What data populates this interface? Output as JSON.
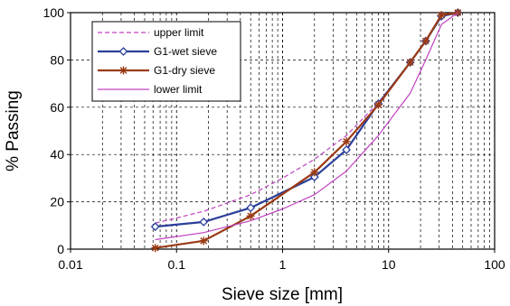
{
  "chart_data": {
    "type": "line",
    "title": "",
    "xlabel": "Sieve size [mm]",
    "ylabel": "% Passing",
    "x_scale": "log",
    "xlim": [
      0.01,
      100
    ],
    "ylim": [
      0,
      100
    ],
    "x_ticks": [
      0.01,
      0.1,
      1,
      10,
      100
    ],
    "x_tick_labels": [
      "0.01",
      "0.1",
      "1",
      "10",
      "100"
    ],
    "y_ticks": [
      0,
      20,
      40,
      60,
      80,
      100
    ],
    "y_tick_labels": [
      "0",
      "20",
      "40",
      "60",
      "80",
      "100"
    ],
    "grid": "dashed, major and minor on x, major on y",
    "legend_position": "top-left",
    "series": [
      {
        "name": "upper limit",
        "color": "#c040c0",
        "line_style": "dashed",
        "marker": "none",
        "x": [
          0.063,
          0.18,
          0.5,
          1,
          2,
          4,
          8,
          16,
          22.4,
          31.5,
          45
        ],
        "y": [
          11,
          16,
          23,
          30,
          38,
          48,
          62,
          79,
          88,
          99,
          100
        ]
      },
      {
        "name": "G1-wet sieve",
        "color": "#2a3f9a",
        "line_style": "solid",
        "marker": "diamond",
        "x": [
          0.063,
          0.18,
          0.5,
          2,
          4,
          8,
          16,
          22.4,
          31.5,
          45
        ],
        "y": [
          9.5,
          11.5,
          17.5,
          30.5,
          42,
          61.5,
          79,
          88,
          98.5,
          100
        ]
      },
      {
        "name": "G1-dry sieve",
        "color": "#9a3a14",
        "line_style": "solid",
        "marker": "asterisk",
        "x": [
          0.063,
          0.18,
          0.5,
          2,
          4,
          8,
          16,
          22.4,
          31.5,
          45
        ],
        "y": [
          0.5,
          3.5,
          14,
          32.5,
          45.5,
          61,
          79,
          88,
          99,
          100
        ]
      },
      {
        "name": "lower limit",
        "color": "#c040c0",
        "line_style": "solid",
        "marker": "none",
        "x": [
          0.063,
          0.18,
          0.5,
          1,
          2,
          4,
          8,
          16,
          22.4,
          31.5,
          45
        ],
        "y": [
          4,
          7,
          12,
          17,
          23,
          33,
          48,
          66,
          80,
          95,
          100
        ]
      }
    ]
  }
}
